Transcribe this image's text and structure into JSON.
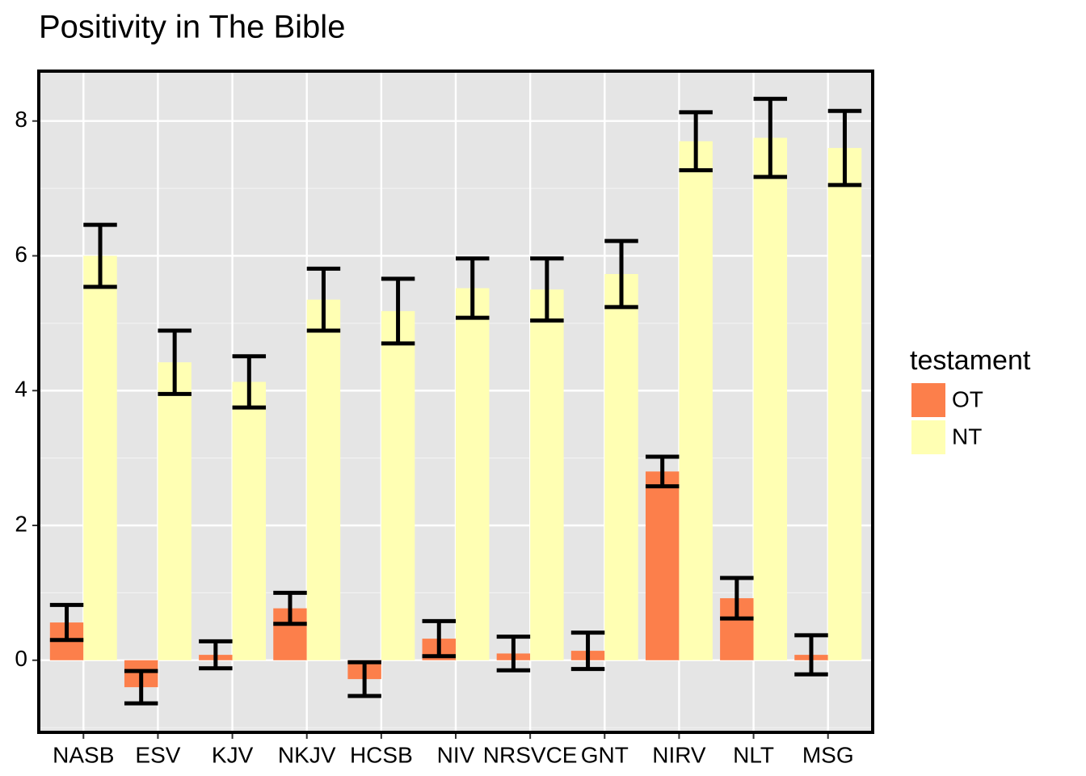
{
  "chart_data": {
    "type": "bar",
    "title": "Positivity in The Bible",
    "categories": [
      "NASB",
      "ESV",
      "KJV",
      "NKJV",
      "HCSB",
      "NIV",
      "NRSVCE",
      "GNT",
      "NIRV",
      "NLT",
      "MSG"
    ],
    "legend_title": "testament",
    "series": [
      {
        "name": "OT",
        "color": "#fc7f4b",
        "values": [
          0.56,
          -0.4,
          0.08,
          0.77,
          -0.28,
          0.32,
          0.1,
          0.14,
          2.8,
          0.92,
          0.08
        ],
        "errors": [
          0.26,
          0.24,
          0.2,
          0.23,
          0.25,
          0.26,
          0.25,
          0.27,
          0.22,
          0.3,
          0.29
        ]
      },
      {
        "name": "NT",
        "color": "#ffffb3",
        "values": [
          6.0,
          4.42,
          4.13,
          5.35,
          5.18,
          5.52,
          5.5,
          5.73,
          7.7,
          7.75,
          7.6
        ],
        "errors": [
          0.46,
          0.47,
          0.38,
          0.46,
          0.48,
          0.44,
          0.46,
          0.49,
          0.43,
          0.58,
          0.55
        ]
      }
    ],
    "ylim": [
      -1.07,
      8.74
    ],
    "yticks": [
      0,
      2,
      4,
      6,
      8
    ],
    "yminor": [
      -1,
      1,
      3,
      5,
      7
    ],
    "grid": true,
    "legend": "right"
  }
}
